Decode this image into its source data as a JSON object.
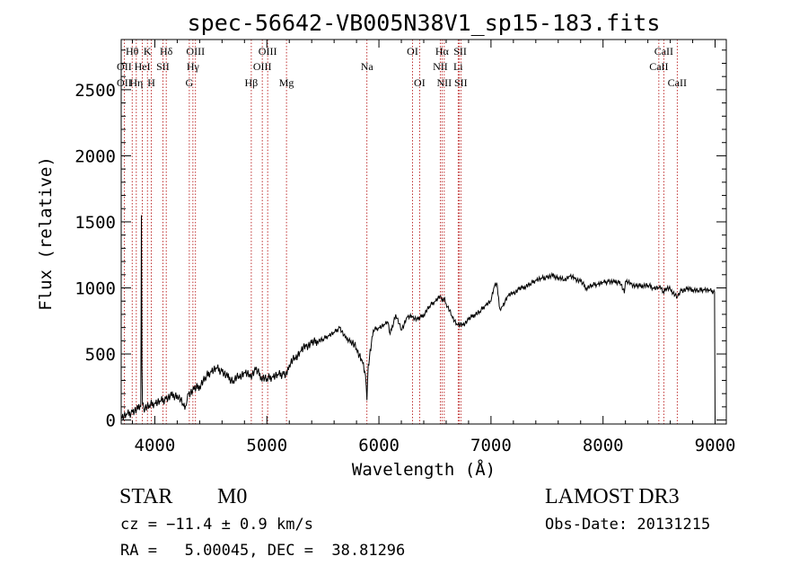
{
  "chart_data": {
    "type": "line",
    "title": "spec-56642-VB005N38V1_sp15-183.fits",
    "xlabel": "Wavelength (Å)",
    "ylabel": "Flux (relative)",
    "xlim": [
      3700,
      9100
    ],
    "ylim": [
      -30,
      2880
    ],
    "xticks": [
      4000,
      5000,
      6000,
      7000,
      8000,
      9000
    ],
    "yticks": [
      0,
      500,
      1000,
      1500,
      2000,
      2500
    ],
    "grid": false,
    "series": [
      {
        "name": "flux",
        "x": [
          3700,
          3750,
          3800,
          3850,
          3875,
          3878,
          3880,
          3885,
          3890,
          3900,
          3950,
          4000,
          4050,
          4100,
          4150,
          4200,
          4250,
          4280,
          4300,
          4350,
          4400,
          4450,
          4500,
          4550,
          4600,
          4650,
          4700,
          4750,
          4800,
          4850,
          4900,
          4950,
          5000,
          5050,
          5100,
          5150,
          5180,
          5200,
          5250,
          5300,
          5350,
          5400,
          5450,
          5500,
          5550,
          5600,
          5650,
          5700,
          5750,
          5800,
          5850,
          5880,
          5893,
          5905,
          5950,
          6000,
          6050,
          6080,
          6100,
          6150,
          6200,
          6250,
          6300,
          6350,
          6400,
          6450,
          6500,
          6550,
          6563,
          6580,
          6600,
          6650,
          6700,
          6750,
          6800,
          6850,
          6900,
          6950,
          7000,
          7030,
          7050,
          7080,
          7100,
          7150,
          7200,
          7250,
          7300,
          7350,
          7400,
          7450,
          7500,
          7550,
          7600,
          7650,
          7700,
          7750,
          7800,
          7850,
          7900,
          7950,
          8000,
          8050,
          8100,
          8150,
          8190,
          8200,
          8250,
          8300,
          8350,
          8400,
          8450,
          8498,
          8520,
          8542,
          8560,
          8600,
          8662,
          8700,
          8750,
          8800,
          8850,
          8900,
          8950,
          8995,
          9000
        ],
        "y": [
          20,
          40,
          60,
          80,
          100,
          800,
          1550,
          400,
          120,
          90,
          110,
          130,
          140,
          160,
          180,
          190,
          120,
          110,
          200,
          230,
          260,
          320,
          370,
          390,
          370,
          320,
          300,
          330,
          360,
          330,
          380,
          330,
          310,
          330,
          340,
          350,
          340,
          420,
          470,
          520,
          560,
          580,
          600,
          610,
          640,
          660,
          700,
          620,
          600,
          540,
          450,
          340,
          150,
          420,
          680,
          700,
          720,
          740,
          650,
          800,
          680,
          780,
          780,
          760,
          800,
          860,
          900,
          940,
          900,
          920,
          880,
          790,
          720,
          720,
          760,
          800,
          820,
          870,
          900,
          1010,
          1040,
          840,
          860,
          940,
          960,
          990,
          1010,
          1030,
          1060,
          1070,
          1080,
          1090,
          1080,
          1060,
          1090,
          1070,
          1050,
          1000,
          1020,
          1030,
          1040,
          1050,
          1040,
          1050,
          960,
          1050,
          1030,
          1010,
          1020,
          1020,
          1000,
          1000,
          1000,
          960,
          1000,
          990,
          930,
          980,
          990,
          990,
          980,
          990,
          980,
          970,
          0
        ]
      }
    ],
    "lines": [
      {
        "name": "CaII K",
        "wave": 3934
      },
      {
        "name": "CaII H",
        "wave": 3969
      },
      {
        "name": "Hδ",
        "wave": 4102
      },
      {
        "name": "G",
        "wave": 4308
      },
      {
        "name": "Hγ",
        "wave": 4340
      },
      {
        "name": "OIII",
        "wave": 4363
      },
      {
        "name": "Hβ",
        "wave": 4861
      },
      {
        "name": "OIII 4959",
        "wave": 4959
      },
      {
        "name": "OIII 5007",
        "wave": 5007
      },
      {
        "name": "Mg",
        "wave": 5175
      },
      {
        "name": "Na",
        "wave": 5893
      },
      {
        "name": "OI 6300",
        "wave": 6300
      },
      {
        "name": "OI 6363",
        "wave": 6363
      },
      {
        "name": "NII 6548",
        "wave": 6548
      },
      {
        "name": "Hα",
        "wave": 6563
      },
      {
        "name": "NII 6583",
        "wave": 6583
      },
      {
        "name": "Li",
        "wave": 6707
      },
      {
        "name": "SII 6716",
        "wave": 6716
      },
      {
        "name": "SII 6731",
        "wave": 6731
      },
      {
        "name": "CaII 8498",
        "wave": 8498
      },
      {
        "name": "CaII 8542",
        "wave": 8542
      },
      {
        "name": "CaII 8662",
        "wave": 8662
      },
      {
        "name": "OII",
        "wave": 3727
      },
      {
        "name": "Hθ",
        "wave": 3798
      },
      {
        "name": "Hη",
        "wave": 3835
      },
      {
        "name": "HeI",
        "wave": 3889
      },
      {
        "name": "SII 4072",
        "wave": 4072
      }
    ],
    "line_labels": [
      {
        "text": "Hθ",
        "wave": 3798,
        "row": 0
      },
      {
        "text": "K",
        "wave": 3934,
        "row": 0
      },
      {
        "text": "Hδ",
        "wave": 4102,
        "row": 0
      },
      {
        "text": "OIII",
        "wave": 4363,
        "row": 0
      },
      {
        "text": "OIII",
        "wave": 5007,
        "row": 0
      },
      {
        "text": "OI",
        "wave": 6300,
        "row": 0
      },
      {
        "text": "Hα",
        "wave": 6563,
        "row": 0
      },
      {
        "text": "SII",
        "wave": 6725,
        "row": 0
      },
      {
        "text": "CaII",
        "wave": 8542,
        "row": 0
      },
      {
        "text": "OII",
        "wave": 3727,
        "row": 1
      },
      {
        "text": "HeI",
        "wave": 3889,
        "row": 1
      },
      {
        "text": "SII",
        "wave": 4072,
        "row": 1
      },
      {
        "text": "Hγ",
        "wave": 4340,
        "row": 1
      },
      {
        "text": "OIII",
        "wave": 4959,
        "row": 1
      },
      {
        "text": "Na",
        "wave": 5893,
        "row": 1
      },
      {
        "text": "NII",
        "wave": 6548,
        "row": 1
      },
      {
        "text": "Li",
        "wave": 6707,
        "row": 1
      },
      {
        "text": "CaII",
        "wave": 8498,
        "row": 1
      },
      {
        "text": "OII",
        "wave": 3727,
        "row": 2
      },
      {
        "text": "Hη",
        "wave": 3835,
        "row": 2
      },
      {
        "text": "H",
        "wave": 3969,
        "row": 2
      },
      {
        "text": "G",
        "wave": 4308,
        "row": 2
      },
      {
        "text": "Hβ",
        "wave": 4861,
        "row": 2
      },
      {
        "text": "Mg",
        "wave": 5175,
        "row": 2
      },
      {
        "text": "OI",
        "wave": 6363,
        "row": 2
      },
      {
        "text": "NII",
        "wave": 6583,
        "row": 2
      },
      {
        "text": "SII",
        "wave": 6731,
        "row": 2
      },
      {
        "text": "CaII",
        "wave": 8662,
        "row": 2
      }
    ]
  },
  "info": {
    "class_label": "STAR",
    "subclass": "M0",
    "survey": "LAMOST DR3",
    "cz_line": "cz = −11.4 ± 0.9 km/s",
    "obs_date_line": "Obs-Date: 20131215",
    "coords_line": "RA =   5.00045, DEC =  38.81296"
  },
  "colors": {
    "line_marker": "#b00000",
    "spectrum": "#000000"
  }
}
